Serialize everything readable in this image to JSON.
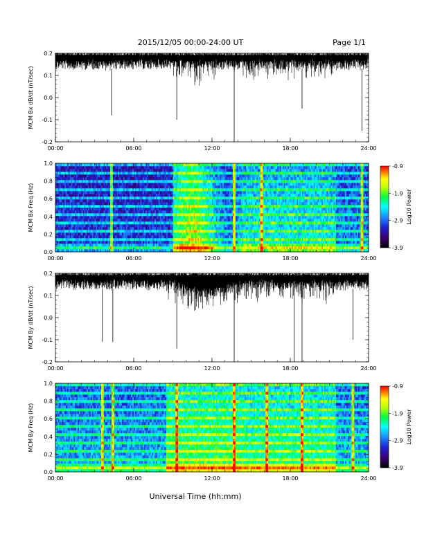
{
  "header": {
    "title": "2015/12/05  00:00-24:00 UT",
    "page": "Page 1/1"
  },
  "footer": {
    "xlabel": "Universal Time (hh:mm)"
  },
  "colors": {
    "trace": "#000000",
    "colormap": [
      "#000000",
      "#3a0070",
      "#2020d0",
      "#1e90ff",
      "#00ffff",
      "#00ff40",
      "#c0ff00",
      "#ffff00",
      "#ff8000",
      "#ff0000"
    ]
  },
  "chart_data": [
    {
      "id": "bx-dbdt",
      "type": "line",
      "ylabel": "MCM Bx dB/dt (nT/sec)",
      "xlim": [
        0,
        24
      ],
      "ylim": [
        -0.2,
        0.2
      ],
      "xticks": [
        "00:00",
        "06:00",
        "12:00",
        "18:00",
        "24:00"
      ],
      "yticks": [
        "-0.2",
        "-0.1",
        "0.0",
        "0.1",
        "0.2"
      ],
      "spikes": [
        [
          4.3,
          -0.08
        ],
        [
          9.3,
          -0.1
        ],
        [
          13.7,
          -0.21
        ],
        [
          18.9,
          -0.05
        ],
        [
          23.5,
          -0.15
        ]
      ]
    },
    {
      "id": "bx-spec",
      "type": "heatmap",
      "ylabel": "MCM Bx Freq (Hz)",
      "xlim": [
        0,
        24
      ],
      "ylim": [
        0,
        1.0
      ],
      "xticks": [
        "00:00",
        "06:00",
        "12:00",
        "18:00",
        "24:00"
      ],
      "yticks": [
        "0.0",
        "0.2",
        "0.4",
        "0.6",
        "0.8",
        "1.0"
      ],
      "colorbar": {
        "label": "Log10 Power",
        "ticks": [
          "-0.9",
          "-1.9",
          "-2.9",
          "-3.9"
        ],
        "range": [
          -3.9,
          -0.9
        ]
      }
    },
    {
      "id": "by-dbdt",
      "type": "line",
      "ylabel": "MCM By dB/dt (nT/sec)",
      "xlim": [
        0,
        24
      ],
      "ylim": [
        -0.2,
        0.2
      ],
      "xticks": [
        "00:00",
        "06:00",
        "12:00",
        "18:00",
        "24:00"
      ],
      "yticks": [
        "-0.2",
        "-0.1",
        "0.0",
        "0.1",
        "0.2"
      ],
      "spikes": [
        [
          3.6,
          -0.11
        ],
        [
          4.4,
          -0.11
        ],
        [
          9.3,
          -0.14
        ],
        [
          13.7,
          -0.2
        ],
        [
          18.3,
          -0.2
        ],
        [
          18.9,
          -0.2
        ],
        [
          22.8,
          -0.1
        ]
      ]
    },
    {
      "id": "by-spec",
      "type": "heatmap",
      "ylabel": "MCM By Freq (Hz)",
      "xlim": [
        0,
        24
      ],
      "ylim": [
        0,
        1.0
      ],
      "xticks": [
        "00:00",
        "06:00",
        "12:00",
        "18:00",
        "24:00"
      ],
      "yticks": [
        "0.0",
        "0.2",
        "0.4",
        "0.6",
        "0.8",
        "1.0"
      ],
      "colorbar": {
        "label": "Log10 Power",
        "ticks": [
          "-0.9",
          "-1.9",
          "-2.9",
          "-3.9"
        ],
        "range": [
          -3.9,
          -0.9
        ]
      }
    }
  ]
}
